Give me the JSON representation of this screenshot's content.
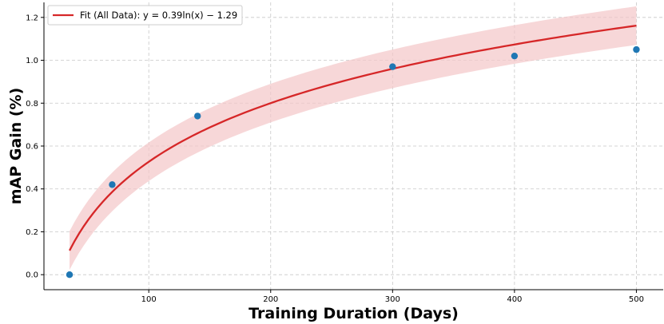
{
  "chart_data": {
    "type": "scatter",
    "title": "",
    "xlabel": "Training Duration (Days)",
    "ylabel": "mAP Gain (%)",
    "xlim": [
      14,
      522
    ],
    "ylim": [
      -0.07,
      1.27
    ],
    "x_ticks": [
      100,
      200,
      300,
      400,
      500
    ],
    "y_ticks": [
      0.0,
      0.2,
      0.4,
      0.6,
      0.8,
      1.0,
      1.2
    ],
    "grid": true,
    "legend_position": "top-left",
    "legend_label": "Fit (All Data): y = 0.39ln(x) − 1.29",
    "points": {
      "x": [
        35,
        70,
        140,
        300,
        400,
        500
      ],
      "y": [
        0.0,
        0.42,
        0.74,
        0.97,
        1.02,
        1.05
      ],
      "color": "#1f77b4"
    },
    "fit": {
      "model": "logarithmic",
      "a": 0.3945,
      "b": -1.29,
      "x_range": [
        35,
        500
      ],
      "color": "#d62728",
      "band_halfwidth": 0.09,
      "band_color": "#f4c6c8"
    }
  }
}
